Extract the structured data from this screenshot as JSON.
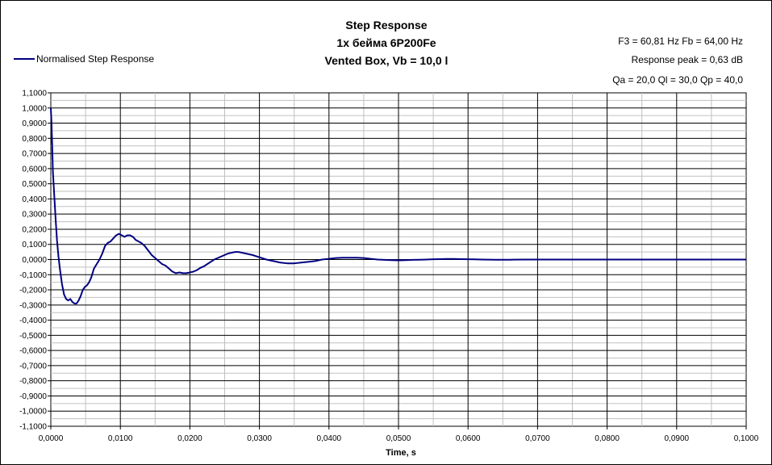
{
  "chart_data": {
    "type": "line",
    "title_lines": [
      "Step Response",
      "1x  бейма 6P200Fe",
      "Vented Box, Vb = 10,0 l"
    ],
    "info_lines": [
      "F3 = 60,81 Hz  Fb = 64,00 Hz",
      "Response peak = 0,63 dB",
      "Qa = 20,0  Ql = 30,0  Qp = 40,0"
    ],
    "xlabel": "Time, s",
    "ylabel": "",
    "xlim": [
      0,
      0.1
    ],
    "ylim": [
      -1.1,
      1.1
    ],
    "x_ticks": [
      "0,0000",
      "0,0100",
      "0,0200",
      "0,0300",
      "0,0400",
      "0,0500",
      "0,0600",
      "0,0700",
      "0,0800",
      "0,0900",
      "0,1000"
    ],
    "y_ticks": [
      "1,1000",
      "1,0000",
      "0,9000",
      "0,8000",
      "0,7000",
      "0,6000",
      "0,5000",
      "0,4000",
      "0,3000",
      "0,2000",
      "0,1000",
      "0,0000",
      "-0,1000",
      "-0,2000",
      "-0,3000",
      "-0,4000",
      "-0,5000",
      "-0,6000",
      "-0,7000",
      "-0,8000",
      "-0,9000",
      "-1,0000",
      "-1,1000"
    ],
    "grid": true,
    "legend_position": "top-left",
    "line_color": "#000080",
    "series": [
      {
        "name": "Normalised Step Response",
        "x": [
          0,
          0.0001,
          0.0002,
          0.0003,
          0.0005,
          0.0007,
          0.0009,
          0.0011,
          0.0013,
          0.0016,
          0.0019,
          0.0022,
          0.0025,
          0.0028,
          0.0031,
          0.0034,
          0.0037,
          0.004,
          0.0043,
          0.0046,
          0.0049,
          0.0052,
          0.0055,
          0.0058,
          0.0062,
          0.0066,
          0.007,
          0.0074,
          0.0078,
          0.0082,
          0.0086,
          0.009,
          0.0094,
          0.0098,
          0.0102,
          0.0106,
          0.011,
          0.0114,
          0.0118,
          0.0122,
          0.0126,
          0.013,
          0.0135,
          0.014,
          0.0145,
          0.015,
          0.0155,
          0.016,
          0.0165,
          0.017,
          0.0175,
          0.018,
          0.0185,
          0.019,
          0.0195,
          0.02,
          0.0205,
          0.021,
          0.0215,
          0.022,
          0.0225,
          0.023,
          0.0235,
          0.024,
          0.0245,
          0.025,
          0.0255,
          0.026,
          0.0265,
          0.027,
          0.0275,
          0.028,
          0.029,
          0.03,
          0.031,
          0.032,
          0.033,
          0.034,
          0.035,
          0.036,
          0.037,
          0.038,
          0.039,
          0.04,
          0.041,
          0.042,
          0.043,
          0.044,
          0.045,
          0.046,
          0.047,
          0.048,
          0.049,
          0.05,
          0.051,
          0.052,
          0.053,
          0.054,
          0.055,
          0.056,
          0.057,
          0.058,
          0.059,
          0.06,
          0.061,
          0.062,
          0.064,
          0.066,
          0.068,
          0.07,
          0.075,
          0.08,
          0.085,
          0.09,
          0.095,
          0.1
        ],
        "y": [
          1.0,
          0.9,
          0.75,
          0.58,
          0.42,
          0.26,
          0.12,
          0.02,
          -0.06,
          -0.16,
          -0.23,
          -0.26,
          -0.27,
          -0.26,
          -0.28,
          -0.29,
          -0.29,
          -0.27,
          -0.24,
          -0.2,
          -0.18,
          -0.17,
          -0.15,
          -0.12,
          -0.06,
          -0.03,
          0.0,
          0.04,
          0.09,
          0.11,
          0.12,
          0.14,
          0.16,
          0.17,
          0.16,
          0.15,
          0.16,
          0.16,
          0.15,
          0.13,
          0.12,
          0.11,
          0.09,
          0.06,
          0.03,
          0.01,
          -0.01,
          -0.03,
          -0.04,
          -0.06,
          -0.08,
          -0.09,
          -0.085,
          -0.09,
          -0.09,
          -0.085,
          -0.08,
          -0.07,
          -0.055,
          -0.045,
          -0.03,
          -0.015,
          0.0,
          0.01,
          0.02,
          0.03,
          0.04,
          0.045,
          0.05,
          0.05,
          0.045,
          0.04,
          0.03,
          0.015,
          0.0,
          -0.01,
          -0.02,
          -0.025,
          -0.025,
          -0.02,
          -0.015,
          -0.01,
          0.0,
          0.005,
          0.01,
          0.012,
          0.012,
          0.012,
          0.01,
          0.005,
          0.0,
          -0.002,
          -0.004,
          -0.005,
          -0.004,
          -0.002,
          -0.001,
          0.0,
          0.002,
          0.003,
          0.004,
          0.004,
          0.003,
          0.002,
          0.001,
          0.0,
          -0.001,
          -0.001,
          0.0,
          0.0,
          0.0,
          0.0,
          0.0,
          0.0,
          0.0,
          0.0
        ]
      }
    ]
  }
}
